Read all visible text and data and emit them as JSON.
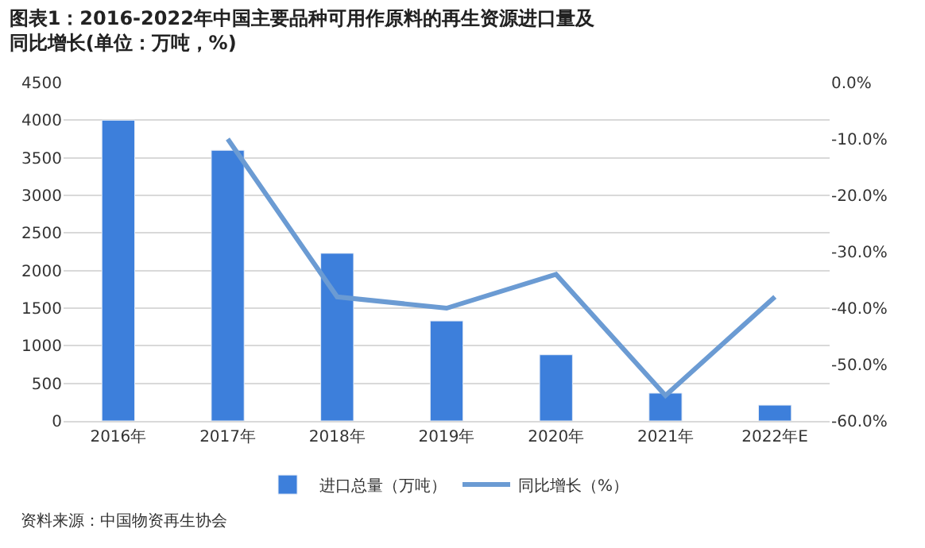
{
  "chart_data": {
    "type": "bar",
    "title": "图表1：2016-2022年中国主要品种可用作原料的再生资源进口量及同比增长(单位：万吨，%)",
    "categories": [
      "2016年",
      "2017年",
      "2018年",
      "2019年",
      "2020年",
      "2021年",
      "2022年E"
    ],
    "series": [
      {
        "name": "进口总量（万吨）",
        "color": "#3d7fdb",
        "values": [
          4000,
          3600,
          2230,
          1330,
          880,
          370,
          210
        ]
      },
      {
        "name": "同比增长（%）",
        "type": "line",
        "axis": "y2",
        "color": "#6b9bd3",
        "values": [
          null,
          -10,
          -38,
          -40,
          -34,
          -55.5,
          -38
        ]
      }
    ],
    "ylim": [
      0,
      4500
    ],
    "yticks": [
      0,
      500,
      1000,
      1500,
      2000,
      2500,
      3000,
      3500,
      4000,
      4500
    ],
    "y2lim": [
      -60,
      0
    ],
    "y2ticks": [
      {
        "value": 0,
        "label": "0.0%"
      },
      {
        "value": -10,
        "label": "-10.0%"
      },
      {
        "value": -20,
        "label": "-20.0%"
      },
      {
        "value": -30,
        "label": "-30.0%"
      },
      {
        "value": -40,
        "label": "-40.0%"
      },
      {
        "value": -50,
        "label": "-50.0%"
      },
      {
        "value": -60,
        "label": "-60.0%"
      }
    ],
    "grid": "y",
    "legend": "bottom",
    "marker": "none",
    "annotations": [
      "资料来源：中国物资再生协会"
    ]
  }
}
